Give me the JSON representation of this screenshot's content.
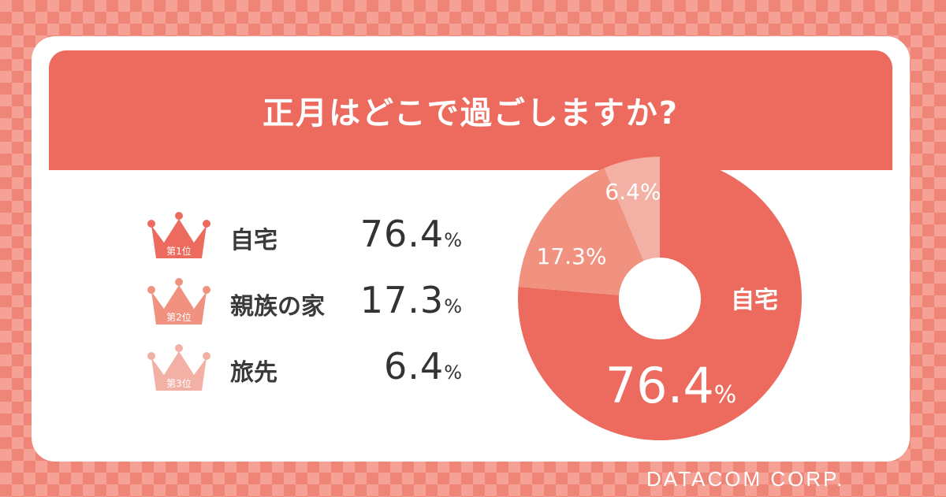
{
  "title": "正月はどこで過ごしますか?",
  "ranking": [
    {
      "rank_text": "第1位",
      "label": "自宅",
      "value": "76.4",
      "unit": "%",
      "color": "#ec6b5e"
    },
    {
      "rank_text": "第2位",
      "label": "親族の家",
      "value": "17.3",
      "unit": "%",
      "color": "#f0927f"
    },
    {
      "rank_text": "第3位",
      "label": "旅先",
      "value": "6.4",
      "unit": "%",
      "color": "#f3b1a5"
    }
  ],
  "chart_data": {
    "type": "pie",
    "donut": true,
    "categories": [
      "自宅",
      "親族の家",
      "旅先"
    ],
    "values": [
      76.4,
      17.3,
      6.4
    ],
    "colors": [
      "#ec6b5e",
      "#f0927f",
      "#f3b1a5"
    ],
    "slice_labels": [
      "自宅",
      "17.3%",
      "6.4%"
    ],
    "center_annotation": {
      "value": "76.4",
      "unit": "%"
    }
  },
  "brand": "DATACOM CORP."
}
